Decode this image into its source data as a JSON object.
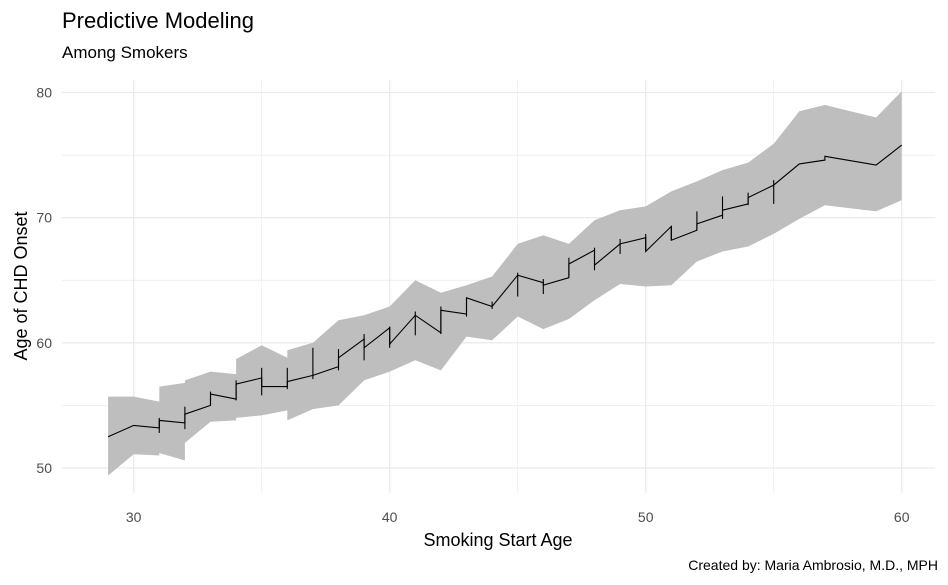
{
  "chart_data": {
    "type": "line",
    "title": "Predictive Modeling",
    "subtitle": "Among Smokers",
    "caption": "Created by: Maria Ambrosio, M.D., MPH",
    "xlabel": "Smoking Start Age",
    "ylabel": "Age of CHD Onset",
    "xlim": [
      27.2,
      61.3
    ],
    "ylim": [
      48,
      81
    ],
    "xticks": [
      30,
      40,
      50,
      60
    ],
    "yticks": [
      50,
      60,
      70,
      80
    ],
    "grid": true,
    "colors": {
      "line": "#000000",
      "band": "#bebebe",
      "grid": "#ebebeb"
    },
    "series": [
      {
        "points": [
          [
            29,
            52.5
          ],
          [
            30,
            53.4
          ],
          [
            31,
            53.2
          ],
          [
            31,
            53.8
          ],
          [
            32,
            53.6
          ],
          [
            32,
            54.3
          ],
          [
            33,
            55.0
          ],
          [
            33,
            55.9
          ],
          [
            34,
            55.5
          ],
          [
            34,
            56.7
          ],
          [
            35,
            57.2
          ],
          [
            35,
            56.5
          ],
          [
            36,
            56.5
          ],
          [
            36,
            56.9
          ],
          [
            37,
            57.4
          ],
          [
            38,
            58.1
          ],
          [
            38,
            58.8
          ],
          [
            39,
            60.3
          ],
          [
            39,
            59.6
          ],
          [
            40,
            61.2
          ],
          [
            40,
            59.9
          ],
          [
            41,
            62.2
          ],
          [
            42,
            60.8
          ],
          [
            42,
            62.6
          ],
          [
            43,
            62.3
          ],
          [
            43,
            63.6
          ],
          [
            44,
            62.9
          ],
          [
            45,
            65.4
          ],
          [
            46,
            64.8
          ],
          [
            46,
            64.6
          ],
          [
            47,
            65.2
          ],
          [
            47,
            66.3
          ],
          [
            48,
            67.4
          ],
          [
            48,
            66.2
          ],
          [
            49,
            67.9
          ],
          [
            50,
            68.4
          ],
          [
            50,
            67.3
          ],
          [
            51,
            69.3
          ],
          [
            51,
            68.2
          ],
          [
            52,
            69.0
          ],
          [
            52,
            69.5
          ],
          [
            53,
            70.2
          ],
          [
            53,
            70.6
          ],
          [
            54,
            71.1
          ],
          [
            54,
            71.6
          ],
          [
            55,
            72.6
          ],
          [
            56,
            74.3
          ],
          [
            57,
            74.6
          ],
          [
            57,
            74.9
          ],
          [
            59,
            74.2
          ],
          [
            60,
            75.8
          ]
        ],
        "band": [
          [
            29,
            49.4,
            55.7
          ],
          [
            30,
            51.1,
            55.7
          ],
          [
            31,
            51.0,
            55.3
          ],
          [
            31,
            51.2,
            56.5
          ],
          [
            32,
            50.6,
            56.8
          ],
          [
            32,
            52.0,
            57.0
          ],
          [
            33,
            53.7,
            57.7
          ],
          [
            34,
            53.8,
            57.5
          ],
          [
            34,
            54.0,
            58.7
          ],
          [
            35,
            54.2,
            59.8
          ],
          [
            36,
            54.6,
            58.8
          ],
          [
            36,
            53.8,
            59.4
          ],
          [
            37,
            54.7,
            60.0
          ],
          [
            38,
            55.0,
            61.8
          ],
          [
            39,
            57.0,
            62.2
          ],
          [
            40,
            57.7,
            62.9
          ],
          [
            41,
            58.6,
            65.0
          ],
          [
            42,
            57.8,
            64.0
          ],
          [
            43,
            60.5,
            64.6
          ],
          [
            44,
            60.2,
            65.3
          ],
          [
            45,
            62.1,
            67.9
          ],
          [
            46,
            61.1,
            68.6
          ],
          [
            47,
            61.9,
            67.9
          ],
          [
            48,
            63.4,
            69.8
          ],
          [
            49,
            64.7,
            70.6
          ],
          [
            50,
            64.5,
            70.9
          ],
          [
            51,
            64.6,
            72.1
          ],
          [
            52,
            66.5,
            72.9
          ],
          [
            53,
            67.3,
            73.8
          ],
          [
            54,
            67.7,
            74.4
          ],
          [
            55,
            68.7,
            75.9
          ],
          [
            56,
            69.9,
            78.5
          ],
          [
            57,
            71.0,
            79.0
          ],
          [
            59,
            70.5,
            78.0
          ],
          [
            60,
            71.4,
            80.1
          ]
        ],
        "whiskers": [
          [
            31,
            52.8,
            54.0
          ],
          [
            32,
            53.1,
            54.9
          ],
          [
            33,
            55.1,
            56.1
          ],
          [
            34,
            55.4,
            57.0
          ],
          [
            35,
            55.8,
            58.0
          ],
          [
            36,
            56.3,
            58.0
          ],
          [
            37,
            57.1,
            59.6
          ],
          [
            38,
            57.8,
            59.5
          ],
          [
            39,
            58.6,
            60.7
          ],
          [
            40,
            59.6,
            61.3
          ],
          [
            41,
            60.6,
            62.5
          ],
          [
            42,
            60.7,
            62.9
          ],
          [
            43,
            62.1,
            63.6
          ],
          [
            44,
            62.7,
            63.3
          ],
          [
            45,
            63.7,
            65.6
          ],
          [
            46,
            63.9,
            65.1
          ],
          [
            47,
            65.3,
            66.8
          ],
          [
            48,
            65.8,
            67.6
          ],
          [
            49,
            67.1,
            68.3
          ],
          [
            50,
            67.4,
            68.7
          ],
          [
            51,
            68.2,
            69.3
          ],
          [
            52,
            69.0,
            70.5
          ],
          [
            53,
            69.9,
            71.7
          ],
          [
            54,
            71.0,
            72.0
          ],
          [
            55,
            71.1,
            73.0
          ]
        ]
      }
    ]
  }
}
